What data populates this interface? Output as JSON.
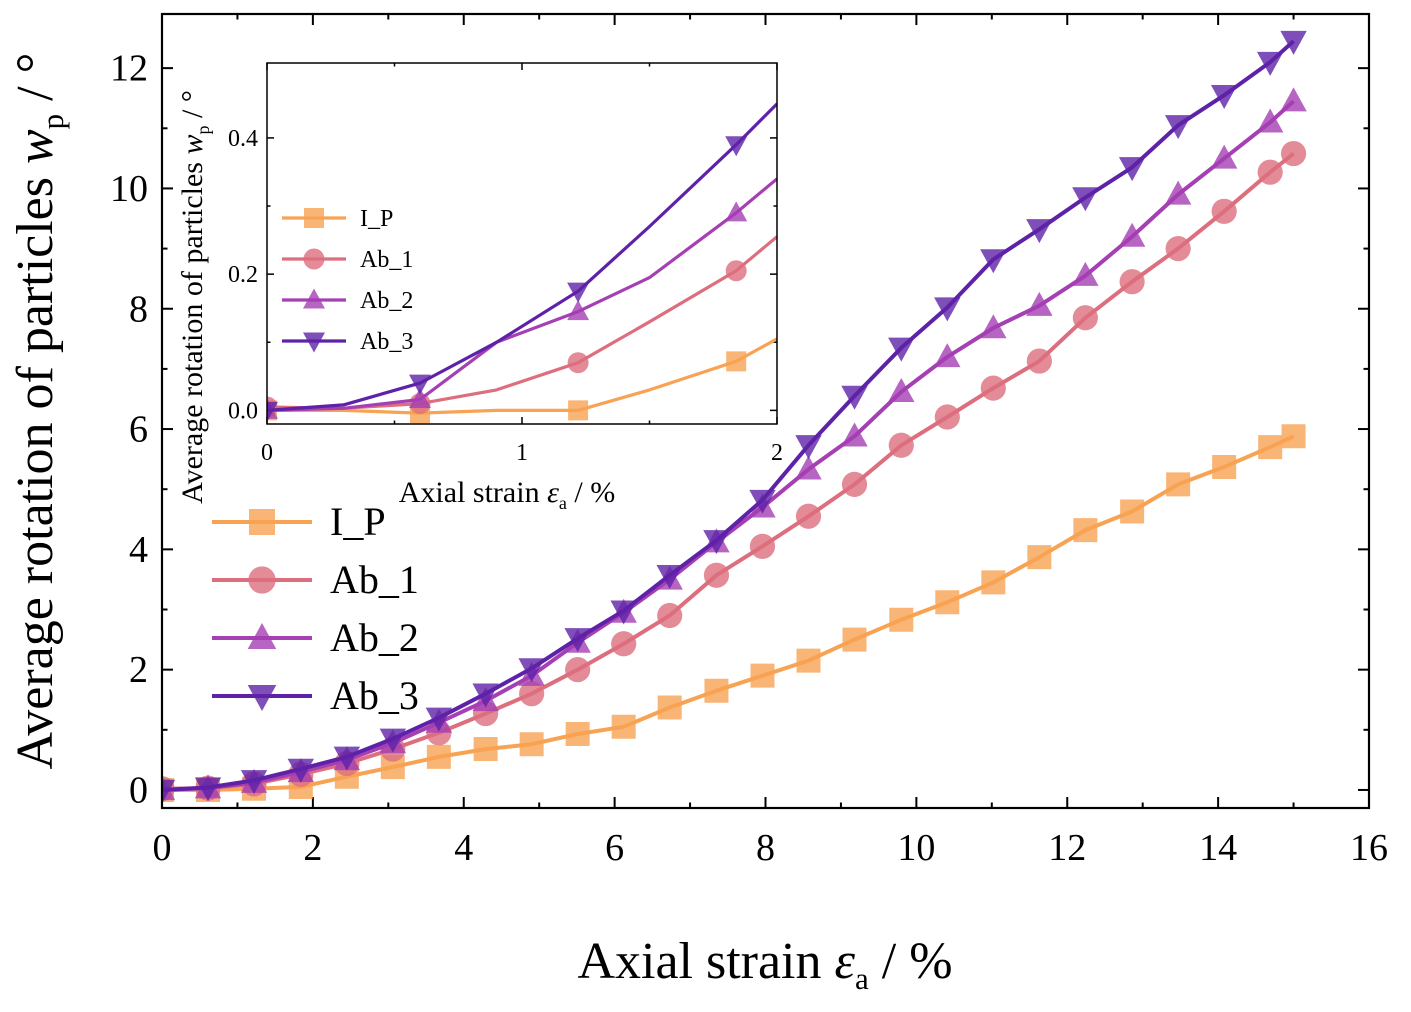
{
  "colors": {
    "I_P": "#f8a253",
    "Ab_1": "#dd6e7e",
    "Ab_2": "#a53fb3",
    "Ab_3": "#5e22a8"
  },
  "chart_data": [
    {
      "id": "main",
      "type": "line",
      "title": "",
      "xlabel": {
        "main": "Axial strain ",
        "symbol": "ε",
        "sub": "a",
        "unit": " / %"
      },
      "ylabel": {
        "main": "Average rotation of particles ",
        "symbol": "w",
        "sub": "p",
        "unit": " / °"
      },
      "xlim": [
        0,
        16
      ],
      "ylim": [
        -0.3,
        12.9
      ],
      "xticks": [
        0,
        2,
        4,
        6,
        8,
        10,
        12,
        14,
        16
      ],
      "xtick_labels": [
        "0",
        "2",
        "4",
        "6",
        "8",
        "10",
        "12",
        "14",
        "16"
      ],
      "yticks": [
        0,
        2,
        4,
        6,
        8,
        10,
        12
      ],
      "ytick_labels": [
        "0",
        "2",
        "4",
        "6",
        "8",
        "10",
        "12"
      ],
      "legend_position": "middle-left",
      "series": [
        {
          "name": "I_P",
          "marker": "square",
          "x": [
            0,
            0.61,
            1.22,
            1.84,
            2.45,
            3.06,
            3.67,
            4.29,
            4.9,
            5.51,
            6.12,
            6.73,
            7.35,
            7.96,
            8.57,
            9.18,
            9.8,
            10.41,
            11.02,
            11.63,
            12.24,
            12.86,
            13.47,
            14.08,
            14.69,
            15.0
          ],
          "y": [
            0.0,
            0.0,
            0.02,
            0.05,
            0.22,
            0.38,
            0.55,
            0.68,
            0.76,
            0.93,
            1.05,
            1.37,
            1.65,
            1.9,
            2.15,
            2.5,
            2.83,
            3.12,
            3.45,
            3.87,
            4.32,
            4.63,
            5.08,
            5.37,
            5.7,
            5.88
          ]
        },
        {
          "name": "Ab_1",
          "marker": "circle",
          "x": [
            0,
            0.61,
            1.22,
            1.84,
            2.45,
            3.06,
            3.67,
            4.29,
            4.9,
            5.51,
            6.12,
            6.73,
            7.35,
            7.96,
            8.57,
            9.18,
            9.8,
            10.41,
            11.02,
            11.63,
            12.24,
            12.86,
            13.47,
            14.08,
            14.69,
            15.0
          ],
          "y": [
            0.02,
            0.03,
            0.1,
            0.26,
            0.44,
            0.68,
            0.95,
            1.27,
            1.6,
            2.0,
            2.43,
            2.9,
            3.57,
            4.05,
            4.55,
            5.08,
            5.73,
            6.2,
            6.68,
            7.13,
            7.85,
            8.45,
            9.0,
            9.62,
            10.27,
            10.58
          ]
        },
        {
          "name": "Ab_2",
          "marker": "triangle-up",
          "x": [
            0,
            0.61,
            1.22,
            1.84,
            2.45,
            3.06,
            3.67,
            4.29,
            4.9,
            5.51,
            6.12,
            6.73,
            7.35,
            7.96,
            8.57,
            9.18,
            9.8,
            10.41,
            11.02,
            11.63,
            12.24,
            12.86,
            13.47,
            14.08,
            14.69,
            15.0
          ],
          "y": [
            0.0,
            0.03,
            0.12,
            0.3,
            0.5,
            0.78,
            1.12,
            1.48,
            1.9,
            2.45,
            2.95,
            3.5,
            4.12,
            4.7,
            5.33,
            5.88,
            6.62,
            7.2,
            7.68,
            8.05,
            8.55,
            9.2,
            9.9,
            10.5,
            11.1,
            11.45
          ]
        },
        {
          "name": "Ab_3",
          "marker": "triangle-down",
          "x": [
            0,
            0.61,
            1.22,
            1.84,
            2.45,
            3.06,
            3.67,
            4.29,
            4.9,
            5.51,
            6.12,
            6.73,
            7.35,
            7.96,
            8.57,
            9.18,
            9.8,
            10.41,
            11.02,
            11.63,
            12.24,
            12.86,
            13.47,
            14.08,
            14.69,
            15.0
          ],
          "y": [
            0.0,
            0.04,
            0.16,
            0.35,
            0.55,
            0.85,
            1.2,
            1.6,
            2.02,
            2.52,
            2.98,
            3.57,
            4.15,
            4.82,
            5.73,
            6.55,
            7.35,
            8.02,
            8.82,
            9.32,
            9.85,
            10.35,
            11.05,
            11.55,
            12.1,
            12.45
          ]
        }
      ]
    },
    {
      "id": "inset",
      "type": "line",
      "title": "",
      "xlabel": {
        "main": "Axial strain ",
        "symbol": "ε",
        "sub": "a",
        "unit": " / %"
      },
      "ylabel": {
        "main": "Average rotation of particles ",
        "symbol": "w",
        "sub": "p",
        "unit": " / °"
      },
      "xlim": [
        0,
        2
      ],
      "ylim": [
        -0.02,
        0.51
      ],
      "xticks": [
        0,
        1,
        2
      ],
      "xtick_labels": [
        "0",
        "1",
        "2"
      ],
      "yticks": [
        0.0,
        0.2,
        0.4
      ],
      "ytick_labels": [
        "0.0",
        "0.2",
        "0.4"
      ],
      "legend_position": "middle-left",
      "series": [
        {
          "name": "I_P",
          "marker": "square",
          "x": [
            0,
            0.3,
            0.6,
            0.9,
            1.22,
            1.5,
            1.84,
            2.0
          ],
          "y": [
            0.0,
            0.0,
            -0.004,
            0.0,
            0.0,
            0.03,
            0.072,
            0.105
          ],
          "marker_x": [
            0,
            0.6,
            1.22,
            1.84
          ],
          "marker_y": [
            0.0,
            -0.004,
            0.0,
            0.072
          ]
        },
        {
          "name": "Ab_1",
          "marker": "circle",
          "x": [
            0,
            0.3,
            0.6,
            0.9,
            1.22,
            1.5,
            1.84,
            2.0
          ],
          "y": [
            0.005,
            0.003,
            0.01,
            0.03,
            0.07,
            0.13,
            0.205,
            0.255
          ],
          "marker_x": [
            0,
            0.6,
            1.22,
            1.84
          ],
          "marker_y": [
            0.005,
            0.01,
            0.07,
            0.205
          ]
        },
        {
          "name": "Ab_2",
          "marker": "triangle-up",
          "x": [
            0,
            0.3,
            0.6,
            0.9,
            1.22,
            1.5,
            1.84,
            2.0
          ],
          "y": [
            0.0,
            0.003,
            0.016,
            0.1,
            0.145,
            0.195,
            0.29,
            0.34
          ],
          "marker_x": [
            0,
            0.6,
            1.22,
            1.84
          ],
          "marker_y": [
            0.0,
            0.016,
            0.145,
            0.29
          ]
        },
        {
          "name": "Ab_3",
          "marker": "triangle-down",
          "x": [
            0,
            0.3,
            0.6,
            0.9,
            1.22,
            1.5,
            1.84,
            2.0
          ],
          "y": [
            0.0,
            0.008,
            0.04,
            0.1,
            0.175,
            0.27,
            0.39,
            0.45
          ],
          "marker_x": [
            0,
            0.6,
            1.22,
            1.84
          ],
          "marker_y": [
            0.0,
            0.04,
            0.175,
            0.39
          ]
        }
      ]
    }
  ]
}
